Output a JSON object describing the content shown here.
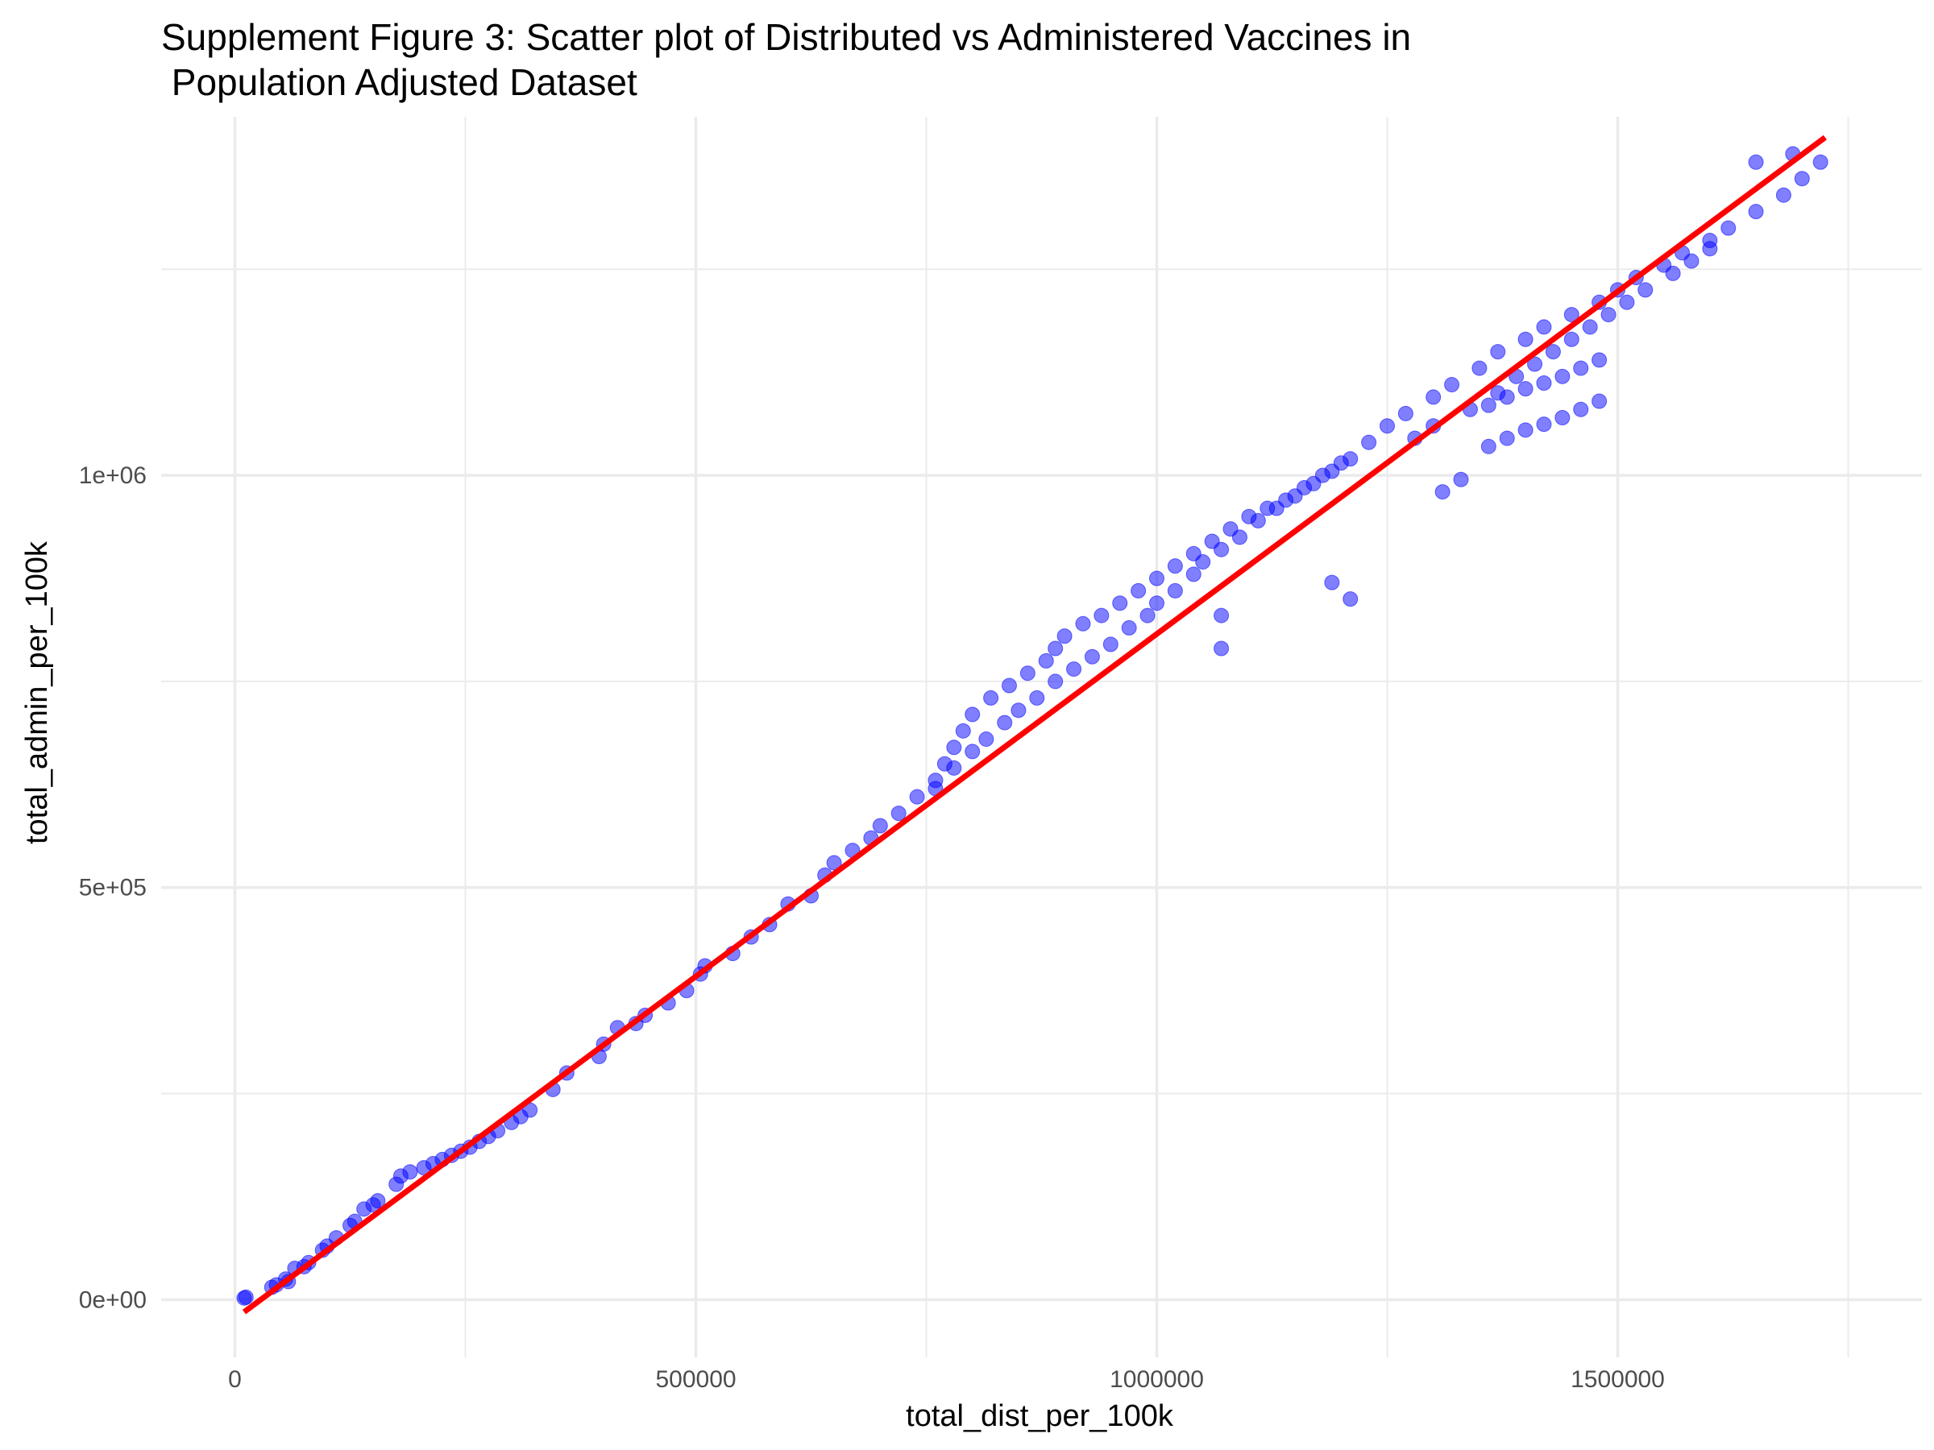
{
  "chart_data": {
    "type": "scatter",
    "title_lines": [
      "Supplement Figure 3: Scatter plot of Distributed vs Administered Vaccines in",
      " Population Adjusted Dataset"
    ],
    "xlabel": "total_dist_per_100k",
    "ylabel": "total_admin_per_100k",
    "xlim": [
      -80000,
      1830000
    ],
    "ylim": [
      -70000,
      1435000
    ],
    "grid": true,
    "x_ticks": [
      0,
      500000,
      1000000,
      1500000
    ],
    "x_tick_labels": [
      "0",
      "500000",
      "1000000",
      "1500000"
    ],
    "y_ticks": [
      0,
      500000,
      1000000
    ],
    "y_tick_labels": [
      "0e+00",
      "5e+05",
      "1e+06"
    ],
    "point_color": "#0000FF",
    "line_color": "#FF0000",
    "trend_line": {
      "x": [
        10000,
        1725000
      ],
      "y": [
        -15000,
        1410000
      ]
    },
    "points": {
      "x": [
        10000,
        12000,
        40000,
        45000,
        55000,
        58000,
        65000,
        75000,
        80000,
        95000,
        100000,
        110000,
        125000,
        130000,
        140000,
        150000,
        155000,
        175000,
        180000,
        190000,
        205000,
        215000,
        225000,
        235000,
        245000,
        255000,
        265000,
        275000,
        285000,
        300000,
        310000,
        320000,
        345000,
        360000,
        395000,
        400000,
        415000,
        435000,
        445000,
        470000,
        490000,
        505000,
        510000,
        540000,
        560000,
        580000,
        600000,
        625000,
        640000,
        650000,
        670000,
        690000,
        700000,
        720000,
        740000,
        760000,
        780000,
        800000,
        815000,
        835000,
        850000,
        870000,
        890000,
        910000,
        930000,
        950000,
        970000,
        990000,
        1000000,
        1020000,
        1040000,
        1050000,
        1070000,
        1090000,
        1110000,
        1130000,
        1150000,
        1170000,
        1190000,
        1210000,
        1230000,
        1250000,
        1270000,
        1300000,
        1320000,
        1350000,
        1370000,
        1400000,
        1420000,
        1450000,
        1480000,
        1500000,
        1520000,
        1550000,
        1570000,
        1600000,
        1620000,
        1650000,
        1680000,
        1700000,
        1720000,
        760000,
        770000,
        780000,
        790000,
        800000,
        820000,
        840000,
        860000,
        880000,
        890000,
        900000,
        920000,
        940000,
        960000,
        980000,
        1000000,
        1020000,
        1040000,
        1060000,
        1080000,
        1100000,
        1120000,
        1140000,
        1160000,
        1180000,
        1200000,
        1280000,
        1300000,
        1340000,
        1370000,
        1390000,
        1410000,
        1430000,
        1450000,
        1470000,
        1490000,
        1510000,
        1530000,
        1560000,
        1580000,
        1600000,
        1360000,
        1380000,
        1400000,
        1420000,
        1440000,
        1460000,
        1480000,
        1360000,
        1380000,
        1400000,
        1420000,
        1440000,
        1460000,
        1480000,
        1650000,
        1690000,
        1310000,
        1330000,
        1070000,
        1070000,
        1190000,
        1210000
      ],
      "y": [
        2000,
        3000,
        15000,
        18000,
        25000,
        22000,
        38000,
        40000,
        45000,
        60000,
        65000,
        75000,
        90000,
        95000,
        110000,
        115000,
        120000,
        140000,
        150000,
        155000,
        160000,
        165000,
        170000,
        175000,
        180000,
        185000,
        192000,
        198000,
        205000,
        215000,
        222000,
        230000,
        255000,
        275000,
        295000,
        310000,
        330000,
        335000,
        345000,
        360000,
        375000,
        395000,
        405000,
        420000,
        440000,
        455000,
        480000,
        490000,
        515000,
        530000,
        545000,
        560000,
        575000,
        590000,
        610000,
        630000,
        645000,
        665000,
        680000,
        700000,
        715000,
        730000,
        750000,
        765000,
        780000,
        795000,
        815000,
        830000,
        845000,
        860000,
        880000,
        895000,
        910000,
        925000,
        945000,
        960000,
        975000,
        990000,
        1005000,
        1020000,
        1040000,
        1060000,
        1075000,
        1095000,
        1110000,
        1130000,
        1150000,
        1165000,
        1180000,
        1195000,
        1210000,
        1225000,
        1240000,
        1255000,
        1270000,
        1285000,
        1300000,
        1320000,
        1340000,
        1360000,
        1380000,
        620000,
        650000,
        670000,
        690000,
        710000,
        730000,
        745000,
        760000,
        775000,
        790000,
        805000,
        820000,
        830000,
        845000,
        860000,
        875000,
        890000,
        905000,
        920000,
        935000,
        950000,
        960000,
        970000,
        985000,
        1000000,
        1015000,
        1045000,
        1060000,
        1080000,
        1100000,
        1120000,
        1135000,
        1150000,
        1165000,
        1180000,
        1195000,
        1210000,
        1225000,
        1245000,
        1260000,
        1275000,
        1085000,
        1095000,
        1105000,
        1112000,
        1120000,
        1130000,
        1140000,
        1035000,
        1045000,
        1055000,
        1062000,
        1070000,
        1080000,
        1090000,
        1380000,
        1390000,
        980000,
        995000,
        830000,
        790000,
        870000,
        850000
      ]
    }
  }
}
